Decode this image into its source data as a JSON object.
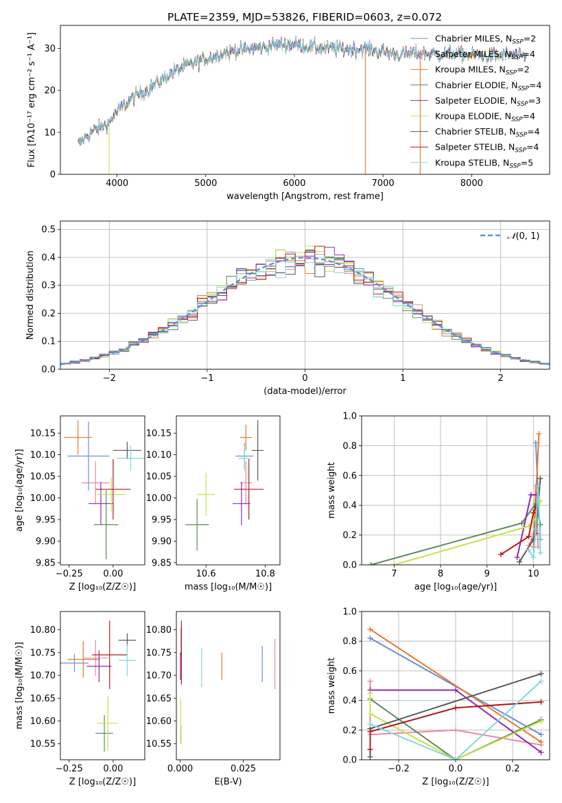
{
  "figure": {
    "title": "PLATE=2359, MJD=53826, FIBERID=0603, z=0.072"
  },
  "chart_data": [
    {
      "id": "spectrum",
      "type": "line",
      "xlabel": "wavelength [Angstrom, rest frame]",
      "ylabel": "Flux [fλ10⁻¹⁷ erg cm⁻² s⁻¹ A⁻¹]",
      "xlim": [
        3360,
        8880
      ],
      "ylim": [
        0,
        35.5
      ],
      "xticks": [
        4000,
        5000,
        6000,
        7000,
        8000
      ],
      "yticks": [
        0,
        10,
        20,
        30
      ],
      "grid": false,
      "legend_position": "top-right",
      "continuum": [
        [
          3560,
          7
        ],
        [
          3700,
          10
        ],
        [
          3900,
          12
        ],
        [
          4000,
          15
        ],
        [
          4200,
          18.5
        ],
        [
          4400,
          21
        ],
        [
          4600,
          24
        ],
        [
          4800,
          26
        ],
        [
          5000,
          27.5
        ],
        [
          5200,
          29
        ],
        [
          5400,
          29.6
        ],
        [
          5600,
          30.2
        ],
        [
          5800,
          30.8
        ],
        [
          6000,
          31
        ],
        [
          6200,
          30.4
        ],
        [
          6400,
          30
        ],
        [
          6600,
          29.8
        ],
        [
          6800,
          30
        ],
        [
          7000,
          29.2
        ],
        [
          7200,
          28.6
        ],
        [
          7400,
          29
        ],
        [
          7600,
          28.6
        ],
        [
          7800,
          28.8
        ],
        [
          8000,
          28.4
        ],
        [
          8200,
          28.2
        ],
        [
          8400,
          28.4
        ],
        [
          8600,
          28
        ]
      ],
      "series": [
        {
          "name": "Chabrier MILES, N_SSP=2",
          "color": "#6a8fd8"
        },
        {
          "name": "Salpeter MILES, N_SSP=4",
          "color": "#e98a9f"
        },
        {
          "name": "Kroupa MILES, N_SSP=2",
          "color": "#e07a2a"
        },
        {
          "name": "Chabrier ELODIE, N_SSP=4",
          "color": "#5a8a5a"
        },
        {
          "name": "Salpeter ELODIE, N_SSP=3",
          "color": "#8e2aa8"
        },
        {
          "name": "Kroupa ELODIE, N_SSP=4",
          "color": "#c9e04a"
        },
        {
          "name": "Chabrier STELIB, N_SSP=4",
          "color": "#555555"
        },
        {
          "name": "Salpeter STELIB, N_SSP=4",
          "color": "#b01818"
        },
        {
          "name": "Kroupa STELIB, N_SSP=5",
          "color": "#7fd8e0"
        }
      ],
      "dropouts": [
        {
          "series": "Kroupa ELODIE, N_SSP=4",
          "x": 3910
        },
        {
          "series": "Kroupa MILES, N_SSP=2",
          "x": 6800
        },
        {
          "series": "Kroupa MILES, N_SSP=2",
          "x": 7420
        }
      ]
    },
    {
      "id": "residuals",
      "type": "histogram",
      "xlabel": "(data-model)/error",
      "ylabel": "Normed distribution",
      "xlim": [
        -2.5,
        2.5
      ],
      "ylim": [
        0,
        0.53
      ],
      "xticks": [
        -2,
        -1,
        0,
        1,
        2
      ],
      "yticks": [
        0.0,
        0.1,
        0.2,
        0.3,
        0.4,
        0.5
      ],
      "grid": true,
      "legend_position": "top-right",
      "reference": {
        "name": "N(0,1)",
        "label_main": "𝒩",
        "label_rest": "(0, 1)",
        "color": "#5b8fd9",
        "style": "dashed",
        "mu": 0,
        "sigma": 1
      },
      "bin_width": 0.1,
      "bin_start": -2.5,
      "series_colors": [
        "#6a8fd8",
        "#e98a9f",
        "#e07a2a",
        "#5a8a5a",
        "#8e2aa8",
        "#c9e04a",
        "#555555",
        "#b01818",
        "#7fd8e0"
      ]
    },
    {
      "id": "age_vs_Z",
      "type": "errorbar",
      "xlabel": "Z [log₁₀(Z/Z☉)]",
      "ylabel": "age  [log₁₀(age/yr)]",
      "xlim": [
        -0.3,
        0.18
      ],
      "ylim": [
        9.845,
        10.19
      ],
      "xticks": [
        -0.25,
        0.0
      ],
      "yticks": [
        9.85,
        9.9,
        9.95,
        10.0,
        10.05,
        10.1,
        10.15
      ],
      "grid": false,
      "points": [
        {
          "color": "#6a8fd8",
          "x": -0.14,
          "y": 10.097,
          "xerr": 0.12,
          "yerr": 0.08
        },
        {
          "color": "#e98a9f",
          "x": -0.1,
          "y": 10.035,
          "xerr": 0.08,
          "yerr": 0.05
        },
        {
          "color": "#e07a2a",
          "x": -0.2,
          "y": 10.14,
          "xerr": 0.08,
          "yerr": 0.04
        },
        {
          "color": "#5a8a5a",
          "x": -0.04,
          "y": 9.938,
          "xerr": 0.07,
          "yerr": 0.08
        },
        {
          "color": "#8e2aa8",
          "x": -0.07,
          "y": 9.987,
          "xerr": 0.07,
          "yerr": 0.05
        },
        {
          "color": "#c9e04a",
          "x": -0.01,
          "y": 10.008,
          "xerr": 0.08,
          "yerr": 0.04
        },
        {
          "color": "#555555",
          "x": 0.08,
          "y": 10.11,
          "xerr": 0.08,
          "yerr": 0.02
        },
        {
          "color": "#b01818",
          "x": 0.0,
          "y": 10.02,
          "xerr": 0.1,
          "yerr": 0.07
        },
        {
          "color": "#7fd8e0",
          "x": 0.1,
          "y": 10.092,
          "xerr": 0.08,
          "yerr": 0.03
        }
      ]
    },
    {
      "id": "age_vs_mass",
      "type": "errorbar",
      "xlabel": "mass [log₁₀(M/M☉)]",
      "ylabel": "",
      "xlim": [
        10.5,
        10.85
      ],
      "ylim": [
        9.845,
        10.19
      ],
      "xticks": [
        10.6,
        10.8
      ],
      "yticks": [
        9.85,
        9.9,
        9.95,
        10.0,
        10.05,
        10.1,
        10.15
      ],
      "grid": false,
      "points": [
        {
          "color": "#6a8fd8",
          "x": 10.73,
          "y": 10.097,
          "xerr": 0.03,
          "yerr": 0.03
        },
        {
          "color": "#e98a9f",
          "x": 10.735,
          "y": 10.035,
          "xerr": 0.02,
          "yerr": 0.05
        },
        {
          "color": "#e07a2a",
          "x": 10.735,
          "y": 10.14,
          "xerr": 0.02,
          "yerr": 0.03
        },
        {
          "color": "#5a8a5a",
          "x": 10.57,
          "y": 9.938,
          "xerr": 0.04,
          "yerr": 0.06
        },
        {
          "color": "#8e2aa8",
          "x": 10.72,
          "y": 9.987,
          "xerr": 0.03,
          "yerr": 0.05
        },
        {
          "color": "#c9e04a",
          "x": 10.6,
          "y": 10.008,
          "xerr": 0.03,
          "yerr": 0.05
        },
        {
          "color": "#555555",
          "x": 10.775,
          "y": 10.11,
          "xerr": 0.02,
          "yerr": 0.07
        },
        {
          "color": "#b01818",
          "x": 10.745,
          "y": 10.02,
          "xerr": 0.05,
          "yerr": 0.07
        },
        {
          "color": "#7fd8e0",
          "x": 10.73,
          "y": 10.092,
          "xerr": 0.02,
          "yerr": 0.03
        }
      ]
    },
    {
      "id": "weight_vs_age",
      "type": "line",
      "xlabel": "age  [log₁₀(age/yr)]",
      "ylabel": "mass weight",
      "xlim": [
        6.3,
        10.35
      ],
      "ylim": [
        0,
        1
      ],
      "xticks": [
        7,
        8,
        9,
        10
      ],
      "yticks": [
        0.0,
        0.2,
        0.4,
        0.6,
        0.8,
        1.0
      ],
      "grid": true,
      "series": [
        {
          "color": "#6a8fd8",
          "points": [
            [
              10.05,
              0.82
            ],
            [
              10.15,
              0.17
            ]
          ]
        },
        {
          "color": "#e98a9f",
          "points": [
            [
              9.9,
              0.13
            ],
            [
              10.0,
              0.2
            ],
            [
              10.05,
              0.53
            ],
            [
              10.1,
              0.12
            ]
          ]
        },
        {
          "color": "#e07a2a",
          "points": [
            [
              10.0,
              0.12
            ],
            [
              10.12,
              0.88
            ]
          ]
        },
        {
          "color": "#5a8a5a",
          "points": [
            [
              6.5,
              0.0
            ],
            [
              9.75,
              0.28
            ],
            [
              10.05,
              0.41
            ],
            [
              10.15,
              0.27
            ]
          ]
        },
        {
          "color": "#8e2aa8",
          "points": [
            [
              9.65,
              0.05
            ],
            [
              9.95,
              0.47
            ],
            [
              10.08,
              0.47
            ]
          ]
        },
        {
          "color": "#c9e04a",
          "points": [
            [
              7.0,
              0.0
            ],
            [
              9.9,
              0.26
            ],
            [
              10.05,
              0.31
            ],
            [
              10.15,
              0.43
            ]
          ]
        },
        {
          "color": "#555555",
          "points": [
            [
              9.7,
              0.02
            ],
            [
              10.0,
              0.17
            ],
            [
              10.05,
              0.21
            ],
            [
              10.15,
              0.58
            ]
          ]
        },
        {
          "color": "#b01818",
          "points": [
            [
              9.3,
              0.07
            ],
            [
              9.9,
              0.19
            ],
            [
              10.0,
              0.35
            ],
            [
              10.05,
              0.39
            ]
          ]
        },
        {
          "color": "#7fd8e0",
          "points": [
            [
              9.9,
              0.1
            ],
            [
              10.0,
              0.05
            ],
            [
              10.05,
              0.24
            ],
            [
              10.1,
              0.53
            ],
            [
              10.15,
              0.08
            ]
          ]
        }
      ]
    },
    {
      "id": "mass_vs_Z",
      "type": "errorbar",
      "xlabel": "Z [log₁₀(Z/Z☉)]",
      "ylabel": "mass [log₁₀(M/M☉)]",
      "xlim": [
        -0.3,
        0.18
      ],
      "ylim": [
        10.515,
        10.84
      ],
      "xticks": [
        -0.25,
        0.0
      ],
      "yticks": [
        10.55,
        10.6,
        10.65,
        10.7,
        10.75,
        10.8
      ],
      "grid": false,
      "points": [
        {
          "color": "#6a8fd8",
          "x": -0.22,
          "y": 10.727,
          "xerr": 0.08,
          "yerr": 0.02
        },
        {
          "color": "#e98a9f",
          "x": -0.1,
          "y": 10.738,
          "xerr": 0.07,
          "yerr": 0.04
        },
        {
          "color": "#e07a2a",
          "x": -0.17,
          "y": 10.735,
          "xerr": 0.09,
          "yerr": 0.04
        },
        {
          "color": "#5a8a5a",
          "x": -0.05,
          "y": 10.573,
          "xerr": 0.05,
          "yerr": 0.04
        },
        {
          "color": "#8e2aa8",
          "x": -0.08,
          "y": 10.72,
          "xerr": 0.07,
          "yerr": 0.035
        },
        {
          "color": "#c9e04a",
          "x": -0.03,
          "y": 10.595,
          "xerr": 0.06,
          "yerr": 0.06
        },
        {
          "color": "#555555",
          "x": 0.08,
          "y": 10.777,
          "xerr": 0.05,
          "yerr": 0.015
        },
        {
          "color": "#b01818",
          "x": -0.02,
          "y": 10.745,
          "xerr": 0.1,
          "yerr": 0.075
        },
        {
          "color": "#7fd8e0",
          "x": 0.08,
          "y": 10.733,
          "xerr": 0.05,
          "yerr": 0.035
        }
      ]
    },
    {
      "id": "mass_vs_EBV",
      "type": "errorbar",
      "xlabel": "E(B-V)",
      "ylabel": "",
      "xlim": [
        -0.0015,
        0.0395
      ],
      "ylim": [
        10.515,
        10.84
      ],
      "xticks": [
        0.0,
        0.025
      ],
      "yticks": [
        10.55,
        10.6,
        10.65,
        10.7,
        10.75,
        10.8
      ],
      "grid": false,
      "points": [
        {
          "color": "#6a8fd8",
          "x": 0.0325,
          "y": 10.725,
          "xerr": 0,
          "yerr": 0.04
        },
        {
          "color": "#e98a9f",
          "x": 0.0375,
          "y": 10.725,
          "xerr": 0,
          "yerr": 0.055
        },
        {
          "color": "#e07a2a",
          "x": 0.0165,
          "y": 10.72,
          "xerr": 0,
          "yerr": 0.03
        },
        {
          "color": "#5a8a5a",
          "x": 0.0003,
          "y": 10.57,
          "xerr": 0,
          "yerr": 0.02
        },
        {
          "color": "#8e2aa8",
          "x": 0.0001,
          "y": 10.72,
          "xerr": 0,
          "yerr": 0.03
        },
        {
          "color": "#c9e04a",
          "x": 0.0002,
          "y": 10.6,
          "xerr": 0,
          "yerr": 0.05
        },
        {
          "color": "#555555",
          "x": 0.0004,
          "y": 10.775,
          "xerr": 0,
          "yerr": 0.03
        },
        {
          "color": "#b01818",
          "x": 0.0005,
          "y": 10.75,
          "xerr": 0,
          "yerr": 0.07
        },
        {
          "color": "#7fd8e0",
          "x": 0.0085,
          "y": 10.717,
          "xerr": 0,
          "yerr": 0.043
        }
      ]
    },
    {
      "id": "weight_vs_Z",
      "type": "line",
      "xlabel": "Z [log₁₀(Z/Z☉)]",
      "ylabel": "mass weight",
      "xlim": [
        -0.33,
        0.33
      ],
      "ylim": [
        0,
        1
      ],
      "xticks": [
        -0.2,
        0.0,
        0.2
      ],
      "yticks": [
        0.0,
        0.2,
        0.4,
        0.6,
        0.8,
        1.0
      ],
      "grid": true,
      "series": [
        {
          "color": "#6a8fd8",
          "points": [
            [
              -0.3,
              0.82
            ],
            [
              0.3,
              0.17
            ]
          ]
        },
        {
          "color": "#e98a9f",
          "points": [
            [
              -0.3,
              0.53
            ],
            [
              -0.3,
              0.17
            ],
            [
              0.0,
              0.2
            ],
            [
              0.3,
              0.1
            ]
          ]
        },
        {
          "color": "#e07a2a",
          "points": [
            [
              -0.3,
              0.88
            ],
            [
              0.3,
              0.12
            ]
          ]
        },
        {
          "color": "#5a8a5a",
          "points": [
            [
              -0.3,
              0.41
            ],
            [
              0.0,
              0.0
            ],
            [
              0.3,
              0.27
            ]
          ]
        },
        {
          "color": "#8e2aa8",
          "points": [
            [
              -0.3,
              0.47
            ],
            [
              0.0,
              0.47
            ],
            [
              0.3,
              0.05
            ]
          ]
        },
        {
          "color": "#c9e04a",
          "points": [
            [
              -0.3,
              0.45
            ],
            [
              -0.3,
              0.31
            ],
            [
              0.0,
              0.0
            ],
            [
              0.3,
              0.26
            ]
          ]
        },
        {
          "color": "#555555",
          "points": [
            [
              -0.3,
              0.02
            ],
            [
              -0.3,
              0.21
            ],
            [
              0.3,
              0.58
            ]
          ]
        },
        {
          "color": "#b01818",
          "points": [
            [
              -0.3,
              0.07
            ],
            [
              -0.3,
              0.19
            ],
            [
              0.0,
              0.35
            ],
            [
              0.3,
              0.39
            ]
          ]
        },
        {
          "color": "#7fd8e0",
          "points": [
            [
              -0.3,
              0.24
            ],
            [
              0.0,
              0.0
            ],
            [
              0.3,
              0.53
            ]
          ]
        }
      ]
    }
  ]
}
